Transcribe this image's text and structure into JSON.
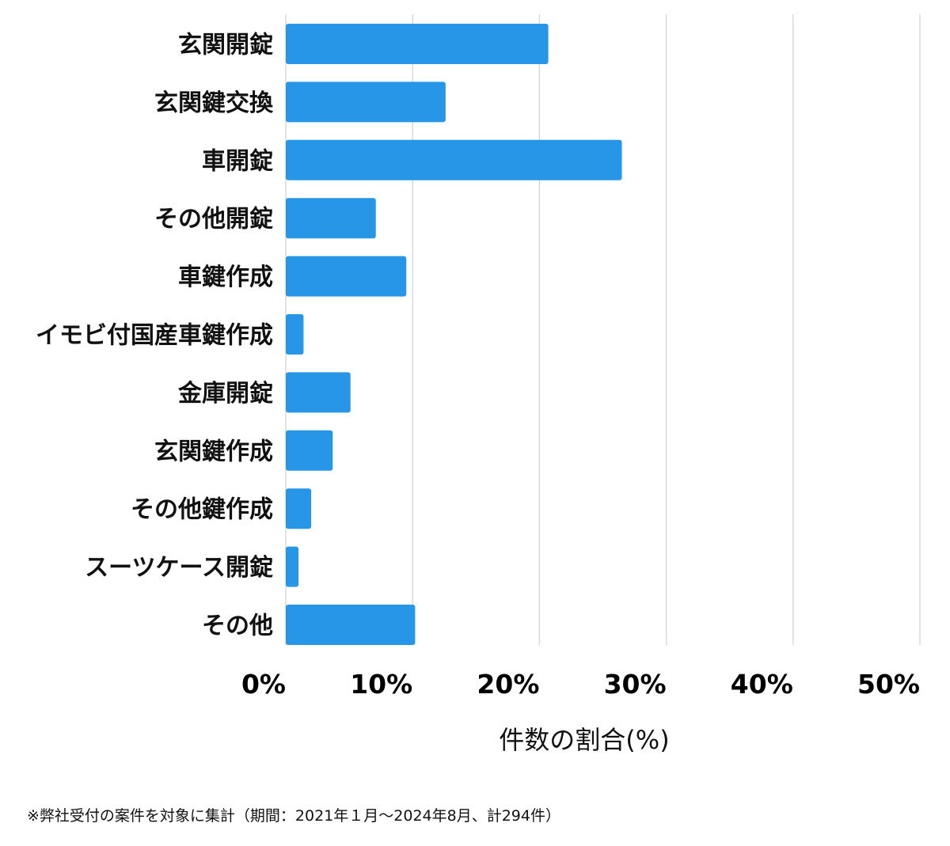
{
  "chart_data": {
    "type": "bar",
    "orientation": "horizontal",
    "categories": [
      "玄関開錠",
      "玄関鍵交換",
      "車開錠",
      "その他開錠",
      "車鍵作成",
      "イモビ付国産車鍵作成",
      "金庫開錠",
      "玄関鍵作成",
      "その他鍵作成",
      "スーツケース開錠",
      "その他"
    ],
    "values": [
      20.7,
      12.6,
      26.5,
      7.1,
      9.5,
      1.4,
      5.1,
      3.7,
      2.0,
      1.0,
      10.2
    ],
    "xlim": [
      0,
      50
    ],
    "xticks": [
      "0%",
      "10%",
      "20%",
      "30%",
      "40%",
      "50%"
    ],
    "xlabel": "件数の割合(%)",
    "ylabel": "",
    "title": "",
    "grid": "vertical",
    "bar_color": "#2896e6",
    "grid_color": "#d4d4d4"
  },
  "footnote": "※弊社受付の案件を対象に集計（期間：2021年１月〜2024年8月、計294件）"
}
